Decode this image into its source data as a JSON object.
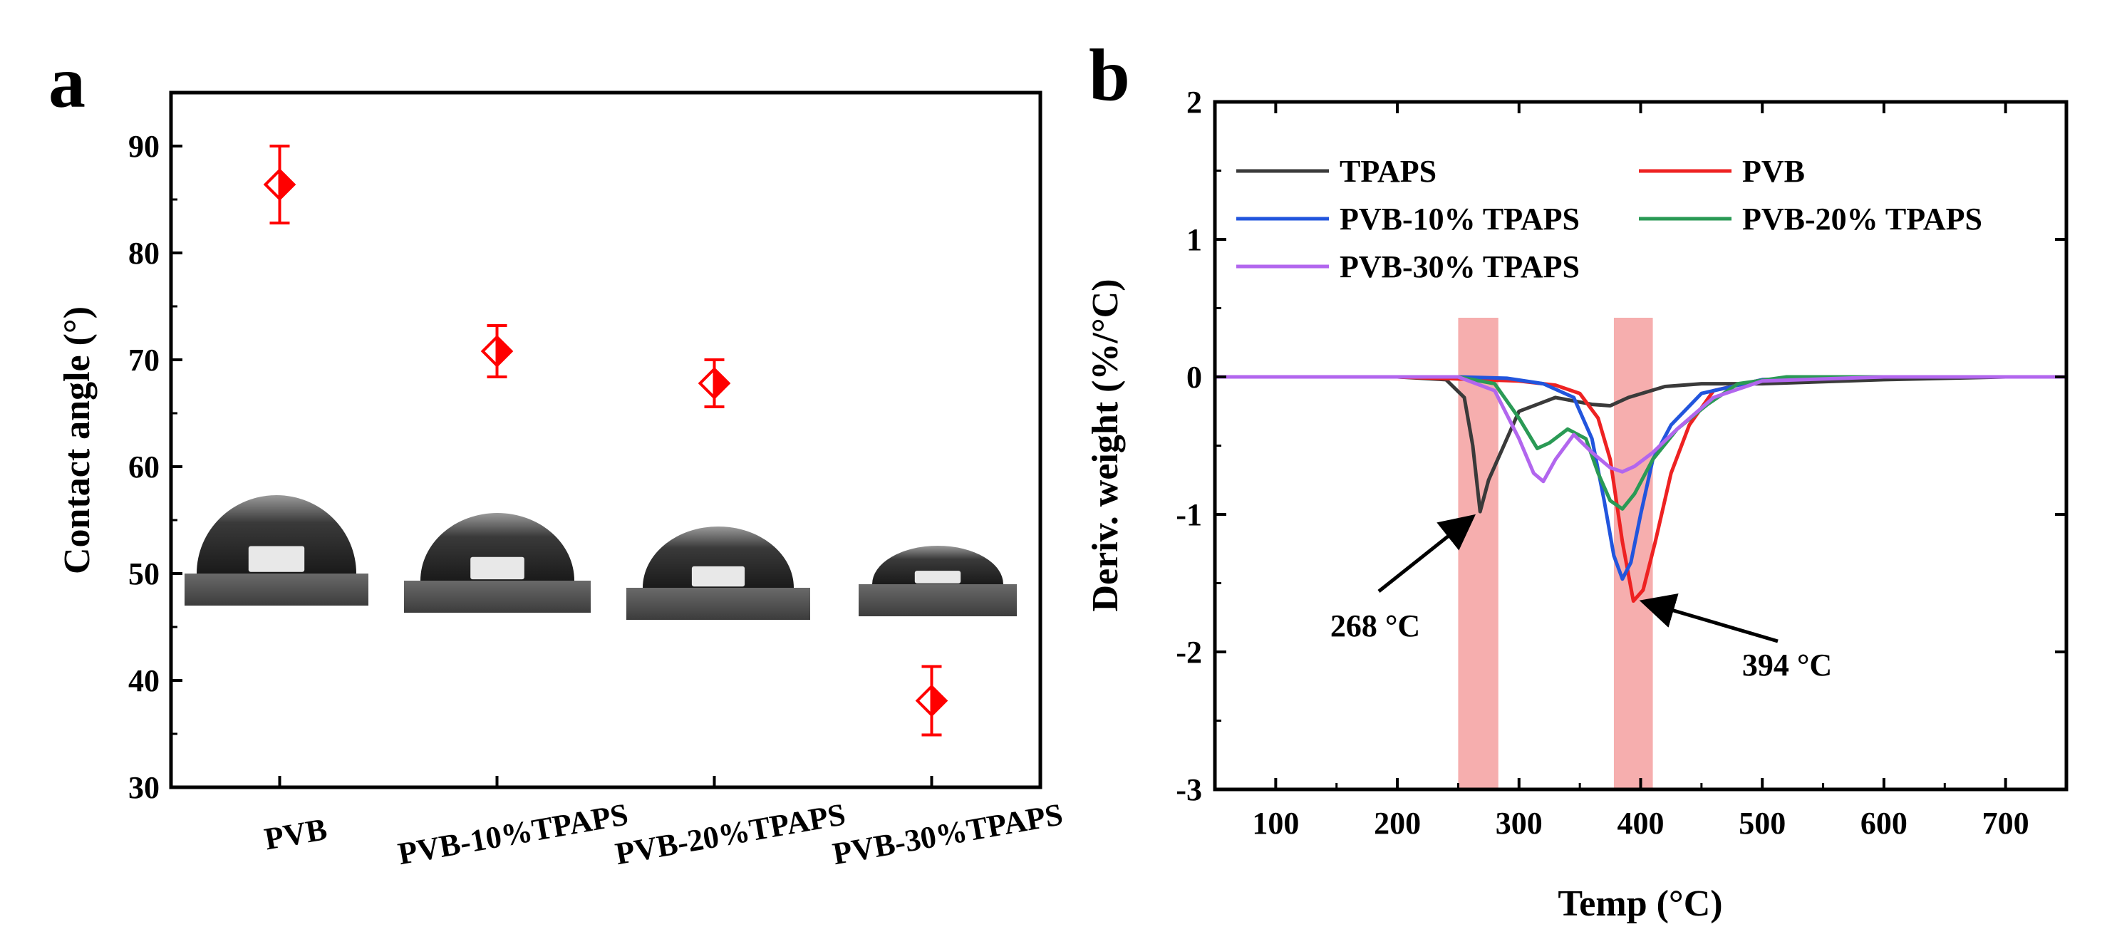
{
  "panels": {
    "a": "a",
    "b": "b"
  },
  "chart_data": [
    {
      "type": "scatter",
      "title": "",
      "xlabel": "",
      "ylabel": "Contact angle (°)",
      "ylim": [
        30,
        95
      ],
      "yticks": [
        30,
        40,
        50,
        60,
        70,
        80,
        90
      ],
      "categories": [
        "PVB",
        "PVB-10%TPAPS",
        "PVB-20%TPAPS",
        "PVB-30%TPAPS"
      ],
      "series": [
        {
          "values": [
            86.4,
            70.8,
            67.8,
            38.1
          ],
          "errors": [
            3.6,
            2.4,
            2.2,
            3.2
          ],
          "color": "#ff0000",
          "marker": "half-filled diamond"
        }
      ],
      "insets": [
        "droplet photo PVB",
        "droplet photo PVB-10%TPAPS",
        "droplet photo PVB-20%TPAPS",
        "droplet photo PVB-30%TPAPS"
      ],
      "grid": false
    },
    {
      "type": "line",
      "title": "",
      "xlabel": "Temp (°C)",
      "ylabel": "Deriv. weight (%/°C)",
      "xlim": [
        50,
        750
      ],
      "ylim": [
        -3,
        2
      ],
      "xticks": [
        100,
        200,
        300,
        400,
        500,
        600,
        700
      ],
      "yticks": [
        -3,
        -2,
        -1,
        0,
        1,
        2
      ],
      "legend_position": "top-left",
      "grid": false,
      "series": [
        {
          "name": "TPAPS",
          "color": "#3a3a3a",
          "x": [
            50,
            200,
            240,
            255,
            262,
            268,
            275,
            285,
            300,
            330,
            360,
            375,
            390,
            420,
            450,
            500,
            600,
            700,
            750
          ],
          "y": [
            0.0,
            0.0,
            -0.02,
            -0.15,
            -0.5,
            -0.98,
            -0.75,
            -0.55,
            -0.25,
            -0.15,
            -0.2,
            -0.21,
            -0.15,
            -0.07,
            -0.05,
            -0.05,
            -0.02,
            0.0,
            0.0
          ]
        },
        {
          "name": "PVB",
          "color": "#ee2222",
          "x": [
            50,
            200,
            300,
            330,
            350,
            365,
            375,
            385,
            394,
            402,
            412,
            425,
            440,
            460,
            500,
            600,
            700,
            750
          ],
          "y": [
            0.0,
            0.0,
            -0.03,
            -0.06,
            -0.12,
            -0.3,
            -0.6,
            -1.2,
            -1.63,
            -1.55,
            -1.2,
            -0.7,
            -0.35,
            -0.1,
            -0.02,
            0.0,
            0.0,
            0.0
          ]
        },
        {
          "name": "PVB-10% TPAPS",
          "color": "#2255dd",
          "x": [
            50,
            250,
            290,
            320,
            345,
            360,
            370,
            378,
            385,
            392,
            400,
            410,
            425,
            450,
            500,
            600,
            700,
            750
          ],
          "y": [
            0.0,
            0.0,
            -0.01,
            -0.05,
            -0.15,
            -0.45,
            -0.9,
            -1.3,
            -1.47,
            -1.35,
            -1.0,
            -0.6,
            -0.35,
            -0.12,
            -0.02,
            0.0,
            0.0,
            0.0
          ]
        },
        {
          "name": "PVB-20% TPAPS",
          "color": "#2a9a55",
          "x": [
            50,
            250,
            280,
            300,
            315,
            325,
            340,
            355,
            365,
            375,
            385,
            395,
            410,
            430,
            455,
            480,
            520,
            600,
            700,
            750
          ],
          "y": [
            0.0,
            0.0,
            -0.05,
            -0.3,
            -0.52,
            -0.48,
            -0.38,
            -0.45,
            -0.7,
            -0.9,
            -0.96,
            -0.85,
            -0.6,
            -0.38,
            -0.2,
            -0.05,
            0.0,
            0.0,
            0.0,
            0.0
          ]
        },
        {
          "name": "PVB-30% TPAPS",
          "color": "#b266ee",
          "x": [
            50,
            250,
            280,
            300,
            312,
            320,
            330,
            345,
            360,
            375,
            385,
            395,
            410,
            430,
            460,
            500,
            600,
            700,
            750
          ],
          "y": [
            0.0,
            0.0,
            -0.1,
            -0.45,
            -0.7,
            -0.76,
            -0.6,
            -0.42,
            -0.55,
            -0.66,
            -0.69,
            -0.65,
            -0.55,
            -0.38,
            -0.15,
            -0.03,
            0.0,
            0.0,
            0.0
          ]
        }
      ],
      "highlight_bands": [
        [
          250,
          283
        ],
        [
          378,
          410
        ]
      ],
      "annotations": [
        {
          "text": "268 °C",
          "x": 268,
          "y": -0.98
        },
        {
          "text": "394 °C",
          "x": 394,
          "y": -1.63
        }
      ]
    }
  ]
}
